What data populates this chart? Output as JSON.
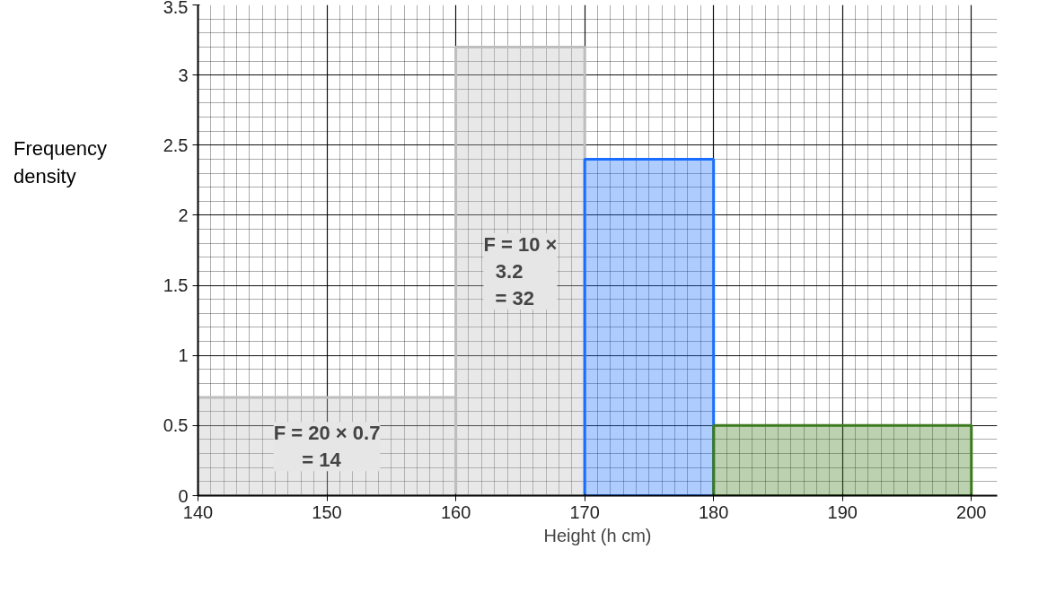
{
  "chart_data": {
    "type": "histogram",
    "xlabel": "Height (h cm)",
    "ylabel": "Frequency density",
    "bins": [
      140,
      160,
      170,
      180,
      200
    ],
    "values": [
      0.7,
      3.2,
      2.4,
      0.5
    ],
    "colors": [
      "#bebec0",
      "#bebec0",
      "#1a6eff",
      "#3d7a1e"
    ],
    "xlim": [
      140,
      202
    ],
    "ylim": [
      0,
      3.5
    ],
    "xticks": [
      140,
      150,
      160,
      170,
      180,
      190,
      200
    ],
    "yticks": [
      0,
      0.5,
      1,
      1.5,
      2,
      2.5,
      3,
      3.5
    ],
    "grid": true,
    "annotations": [
      "F = 20 × 0.7\n  = 14",
      "F = 10 ×\n    3.2\n  = 32"
    ]
  }
}
